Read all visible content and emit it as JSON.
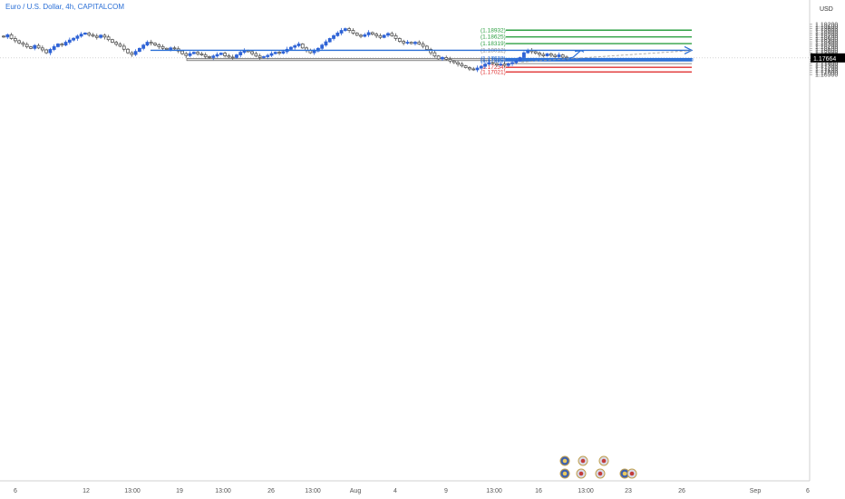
{
  "header": {
    "symbol": "Euro / U.S. Dollar",
    "interval": "4h",
    "exchange": "CAPITALCOM",
    "currency": "USD"
  },
  "price_axis": {
    "ticks": [
      "1.19200",
      "1.19100",
      "1.19000",
      "1.18900",
      "1.18800",
      "1.18700",
      "1.18600",
      "1.18500",
      "1.18400",
      "1.18300",
      "1.18200",
      "1.18100",
      "1.18000",
      "1.17900",
      "1.17800",
      "1.17600",
      "1.17500",
      "1.17400",
      "1.17300",
      "1.17200",
      "1.17100",
      "1.17000",
      "1.16900"
    ],
    "current_price": "1.17664"
  },
  "time_axis": {
    "ticks": [
      "6",
      "12",
      "13:00",
      "19",
      "13:00",
      "26",
      "13:00",
      "Aug",
      "4",
      "9",
      "13:00",
      "16",
      "13:00",
      "23",
      "26",
      "Sep",
      "6"
    ]
  },
  "colors": {
    "up_candle": "#2e63d6",
    "down_candle": "#555555",
    "target_line": "#2ea043",
    "stop_line": "#e03131",
    "blue_level": "#2a6fd6",
    "gray_level": "#8a8a8a",
    "zone_fill": "#cfcfcf",
    "blue_zone_fill": "#c9d6f0",
    "price_label_bg": "#000000"
  },
  "chart_data": {
    "type": "candlestick",
    "symbol": "EURUSD",
    "timeframe": "4h",
    "ylim": [
      1.1686,
      1.1931
    ],
    "x_labels": [
      "6",
      "12",
      "13:00",
      "19",
      "13:00",
      "26",
      "13:00",
      "Aug",
      "4",
      "9",
      "13:00",
      "16",
      "13:00",
      "23",
      "26",
      "Sep",
      "6"
    ],
    "current_price": 1.17664,
    "candles_close": [
      1.1862,
      1.1872,
      1.1855,
      1.1845,
      1.1835,
      1.1828,
      1.1817,
      1.181,
      1.1823,
      1.1812,
      1.1803,
      1.179,
      1.1805,
      1.1818,
      1.183,
      1.1825,
      1.1838,
      1.1848,
      1.1856,
      1.1866,
      1.1875,
      1.188,
      1.1872,
      1.1866,
      1.186,
      1.187,
      1.1862,
      1.185,
      1.1838,
      1.1829,
      1.182,
      1.1806,
      1.179,
      1.1782,
      1.1796,
      1.181,
      1.1825,
      1.1838,
      1.1833,
      1.1826,
      1.1818,
      1.181,
      1.1805,
      1.1812,
      1.1808,
      1.1798,
      1.1786,
      1.1777,
      1.1786,
      1.1792,
      1.1785,
      1.178,
      1.1772,
      1.1768,
      1.1775,
      1.1782,
      1.1788,
      1.1776,
      1.177,
      1.1768,
      1.178,
      1.1792,
      1.18,
      1.1795,
      1.1786,
      1.1775,
      1.1768,
      1.1772,
      1.1778,
      1.1786,
      1.1792,
      1.1788,
      1.1795,
      1.1806,
      1.1815,
      1.1822,
      1.183,
      1.1812,
      1.18,
      1.179,
      1.1798,
      1.181,
      1.1825,
      1.184,
      1.1855,
      1.1868,
      1.188,
      1.1892,
      1.19,
      1.1892,
      1.188,
      1.187,
      1.1865,
      1.1872,
      1.1882,
      1.1875,
      1.1868,
      1.186,
      1.187,
      1.1878,
      1.1868,
      1.1855,
      1.1842,
      1.1835,
      1.1838,
      1.1832,
      1.1838,
      1.183,
      1.182,
      1.1805,
      1.179,
      1.1775,
      1.1762,
      1.1768,
      1.176,
      1.1752,
      1.1745,
      1.1738,
      1.173,
      1.1722,
      1.1716,
      1.1712,
      1.172,
      1.1728,
      1.1738,
      1.1745,
      1.174,
      1.1734,
      1.1738,
      1.1732,
      1.174,
      1.1745,
      1.1752,
      1.1768,
      1.179,
      1.18,
      1.1795,
      1.1788,
      1.1782,
      1.1776,
      1.1785,
      1.1778,
      1.1772,
      1.178,
      1.177,
      1.1766
    ],
    "levels": [
      {
        "label": "(1.18932)",
        "price": 1.18932,
        "color": "#2ea043"
      },
      {
        "label": "(1.18625)",
        "price": 1.18625,
        "color": "#2ea043"
      },
      {
        "label": "(1.18319)",
        "price": 1.18319,
        "color": "#2ea043"
      },
      {
        "label": "(1.18012)",
        "price": 1.18012,
        "color": "#8a8a8a"
      },
      {
        "label": "(1.17632)",
        "price": 1.17632,
        "color": "#2a6fd6"
      },
      {
        "label": "(1.17580)",
        "price": 1.1758,
        "color": "#2a6fd6"
      },
      {
        "label": "(1.17528)",
        "price": 1.17528,
        "color": "#2a6fd6"
      },
      {
        "label": "",
        "price": 1.17403,
        "color": "#8a8a8a"
      },
      {
        "label": "(1.17234)",
        "price": 1.17234,
        "color": "#e03131"
      },
      {
        "label": "(1.17021)",
        "price": 1.17021,
        "color": "#e03131"
      }
    ],
    "horizontal_ray": {
      "price": 1.18012,
      "color": "#2a6fd6"
    },
    "support_zone": {
      "top": 1.1764,
      "bottom": 1.1754
    },
    "blue_zone": {
      "top": 1.17632,
      "bottom": 1.17528
    }
  }
}
